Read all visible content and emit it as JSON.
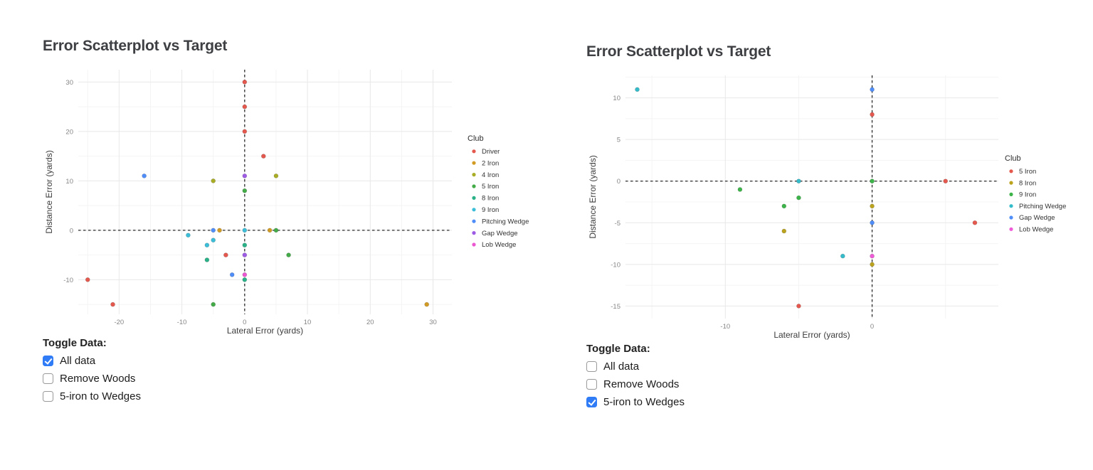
{
  "colors": {
    "accent": "#2f7cf6",
    "title_text": "#3d3f42",
    "tick_text": "#868686",
    "axis_label_text": "#3c3c3c",
    "grid_major": "#e8e8e8",
    "grid_minor": "#f4f4f4",
    "refline": "#2a2a2a"
  },
  "charts": [
    {
      "title": "Error Scatterplot vs Target",
      "toggle_heading": "Toggle Data:",
      "toggles": [
        {
          "label": "All data",
          "checked": true
        },
        {
          "label": "Remove Woods",
          "checked": false
        },
        {
          "label": "5-iron to Wedges",
          "checked": false
        }
      ]
    },
    {
      "title": "Error Scatterplot vs Target",
      "toggle_heading": "Toggle Data:",
      "toggles": [
        {
          "label": "All data",
          "checked": false
        },
        {
          "label": "Remove Woods",
          "checked": false
        },
        {
          "label": "5-iron to Wedges",
          "checked": true
        }
      ]
    }
  ],
  "chart_data": [
    {
      "type": "scatter",
      "title": "Error Scatterplot vs Target",
      "xlabel": "Lateral Error (yards)",
      "ylabel": "Distance Error (yards)",
      "legend_title": "Club",
      "legend_position": "right",
      "grid": true,
      "xlim": [
        -26.5,
        33
      ],
      "ylim": [
        -17,
        32.5
      ],
      "xticks": [
        -20,
        -10,
        0,
        10,
        20,
        30
      ],
      "yticks": [
        -10,
        0,
        10,
        20,
        30
      ],
      "minor_x_step": 5,
      "minor_y_step": 5,
      "reference_lines": {
        "x": 0,
        "y": 0,
        "style": "dashed"
      },
      "series": [
        {
          "name": "Driver",
          "color": "#e4584e",
          "points": [
            [
              0,
              30
            ],
            [
              0,
              25
            ],
            [
              0,
              20
            ],
            [
              3,
              15
            ],
            [
              -3,
              -5
            ],
            [
              -25,
              -10
            ],
            [
              -21,
              -15
            ]
          ]
        },
        {
          "name": "2 Iron",
          "color": "#d29b23",
          "points": [
            [
              -4,
              0
            ],
            [
              4,
              0
            ],
            [
              29,
              -15
            ]
          ]
        },
        {
          "name": "4 Iron",
          "color": "#a9ad25",
          "points": [
            [
              -5,
              10
            ],
            [
              5,
              11
            ]
          ]
        },
        {
          "name": "5 Iron",
          "color": "#44ab49",
          "points": [
            [
              0,
              8
            ],
            [
              5,
              0
            ],
            [
              7,
              -5
            ],
            [
              -5,
              -15
            ]
          ]
        },
        {
          "name": "8 Iron",
          "color": "#2ab187",
          "points": [
            [
              0,
              -3
            ],
            [
              -6,
              -6
            ],
            [
              0,
              -10
            ]
          ]
        },
        {
          "name": "9 Iron",
          "color": "#3cbdd8",
          "points": [
            [
              0,
              0
            ],
            [
              -9,
              -1
            ],
            [
              -5,
              -2
            ],
            [
              -6,
              -3
            ]
          ]
        },
        {
          "name": "Pitching Wedge",
          "color": "#4f8df8",
          "points": [
            [
              -16,
              11
            ],
            [
              -5,
              0
            ],
            [
              -2,
              -9
            ]
          ]
        },
        {
          "name": "Gap Wedge",
          "color": "#9e5be4",
          "points": [
            [
              0,
              11
            ],
            [
              0,
              -5
            ]
          ]
        },
        {
          "name": "Lob Wedge",
          "color": "#ea57d0",
          "points": [
            [
              0,
              -9
            ]
          ]
        }
      ]
    },
    {
      "type": "scatter",
      "title": "Error Scatterplot vs Target",
      "xlabel": "Lateral Error (yards)",
      "ylabel": "Distance Error (yards)",
      "legend_title": "Club",
      "legend_position": "right",
      "grid": true,
      "xlim": [
        -16.8,
        8.6
      ],
      "ylim": [
        -16.5,
        12.7
      ],
      "xticks": [
        -10,
        0
      ],
      "yticks": [
        -15,
        -10,
        -5,
        0,
        5,
        10
      ],
      "minor_x_step": 5,
      "minor_y_step": 2.5,
      "reference_lines": {
        "x": 0,
        "y": 0,
        "style": "dashed"
      },
      "series": [
        {
          "name": "5 Iron",
          "color": "#e4584e",
          "points": [
            [
              0,
              8
            ],
            [
              5,
              0
            ],
            [
              7,
              -5
            ],
            [
              -5,
              -15
            ]
          ]
        },
        {
          "name": "8 Iron",
          "color": "#bba31e",
          "points": [
            [
              0,
              -3
            ],
            [
              -6,
              -6
            ],
            [
              0,
              -10
            ]
          ]
        },
        {
          "name": "9 Iron",
          "color": "#3cb44a",
          "points": [
            [
              0,
              0
            ],
            [
              -9,
              -1
            ],
            [
              -5,
              -2
            ],
            [
              -6,
              -3
            ]
          ]
        },
        {
          "name": "Pitching Wedge",
          "color": "#35bccb",
          "points": [
            [
              -16,
              11
            ],
            [
              -5,
              0
            ],
            [
              -2,
              -9
            ]
          ]
        },
        {
          "name": "Gap Wedge",
          "color": "#4f8df8",
          "points": [
            [
              0,
              11
            ],
            [
              0,
              -5
            ]
          ]
        },
        {
          "name": "Lob Wedge",
          "color": "#ef5ad6",
          "points": [
            [
              0,
              -9
            ]
          ]
        }
      ]
    }
  ]
}
